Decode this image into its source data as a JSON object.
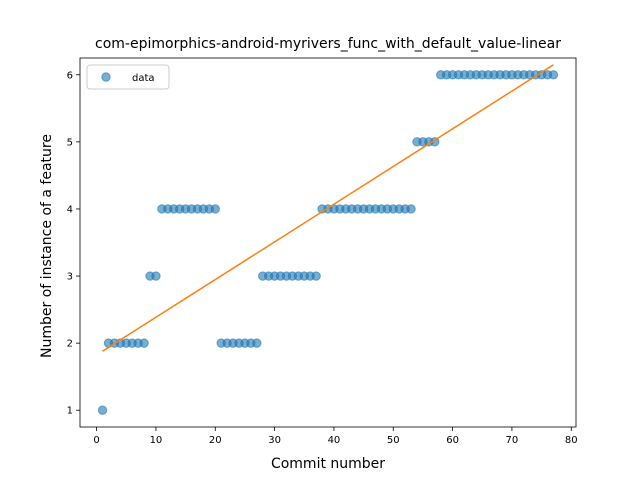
{
  "chart_data": {
    "type": "scatter",
    "title": "com-epimorphics-android-myrivers_func_with_default_value-linear",
    "xlabel": "Commit number",
    "ylabel": "Number of instance of a feature",
    "xlim": [
      -2.8,
      80.8
    ],
    "ylim": [
      0.75,
      6.25
    ],
    "xticks": [
      0,
      10,
      20,
      30,
      40,
      50,
      60,
      70,
      80
    ],
    "yticks": [
      1,
      2,
      3,
      4,
      5,
      6
    ],
    "grid": false,
    "legend": {
      "position": "top-left",
      "entries": [
        "data"
      ]
    },
    "series": [
      {
        "name": "data",
        "type": "scatter",
        "color": "#1f77b4",
        "x": [
          1,
          2,
          3,
          4,
          5,
          6,
          7,
          8,
          9,
          10,
          11,
          12,
          13,
          14,
          15,
          16,
          17,
          18,
          19,
          20,
          21,
          22,
          23,
          24,
          25,
          26,
          27,
          28,
          29,
          30,
          31,
          32,
          33,
          34,
          35,
          36,
          37,
          38,
          39,
          40,
          41,
          42,
          43,
          44,
          45,
          46,
          47,
          48,
          49,
          50,
          51,
          52,
          53,
          54,
          55,
          56,
          57,
          58,
          59,
          60,
          61,
          62,
          63,
          64,
          65,
          66,
          67,
          68,
          69,
          70,
          71,
          72,
          73,
          74,
          75,
          76,
          77
        ],
        "y": [
          1,
          2,
          2,
          2,
          2,
          2,
          2,
          2,
          3,
          3,
          4,
          4,
          4,
          4,
          4,
          4,
          4,
          4,
          4,
          4,
          2,
          2,
          2,
          2,
          2,
          2,
          2,
          3,
          3,
          3,
          3,
          3,
          3,
          3,
          3,
          3,
          3,
          4,
          4,
          4,
          4,
          4,
          4,
          4,
          4,
          4,
          4,
          4,
          4,
          4,
          4,
          4,
          4,
          5,
          5,
          5,
          5,
          6,
          6,
          6,
          6,
          6,
          6,
          6,
          6,
          6,
          6,
          6,
          6,
          6,
          6,
          6,
          6,
          6,
          6,
          6,
          6
        ]
      },
      {
        "name": "",
        "type": "line",
        "color": "#ff7f0e",
        "x": [
          1,
          77
        ],
        "y": [
          1.88,
          6.15
        ]
      }
    ]
  }
}
